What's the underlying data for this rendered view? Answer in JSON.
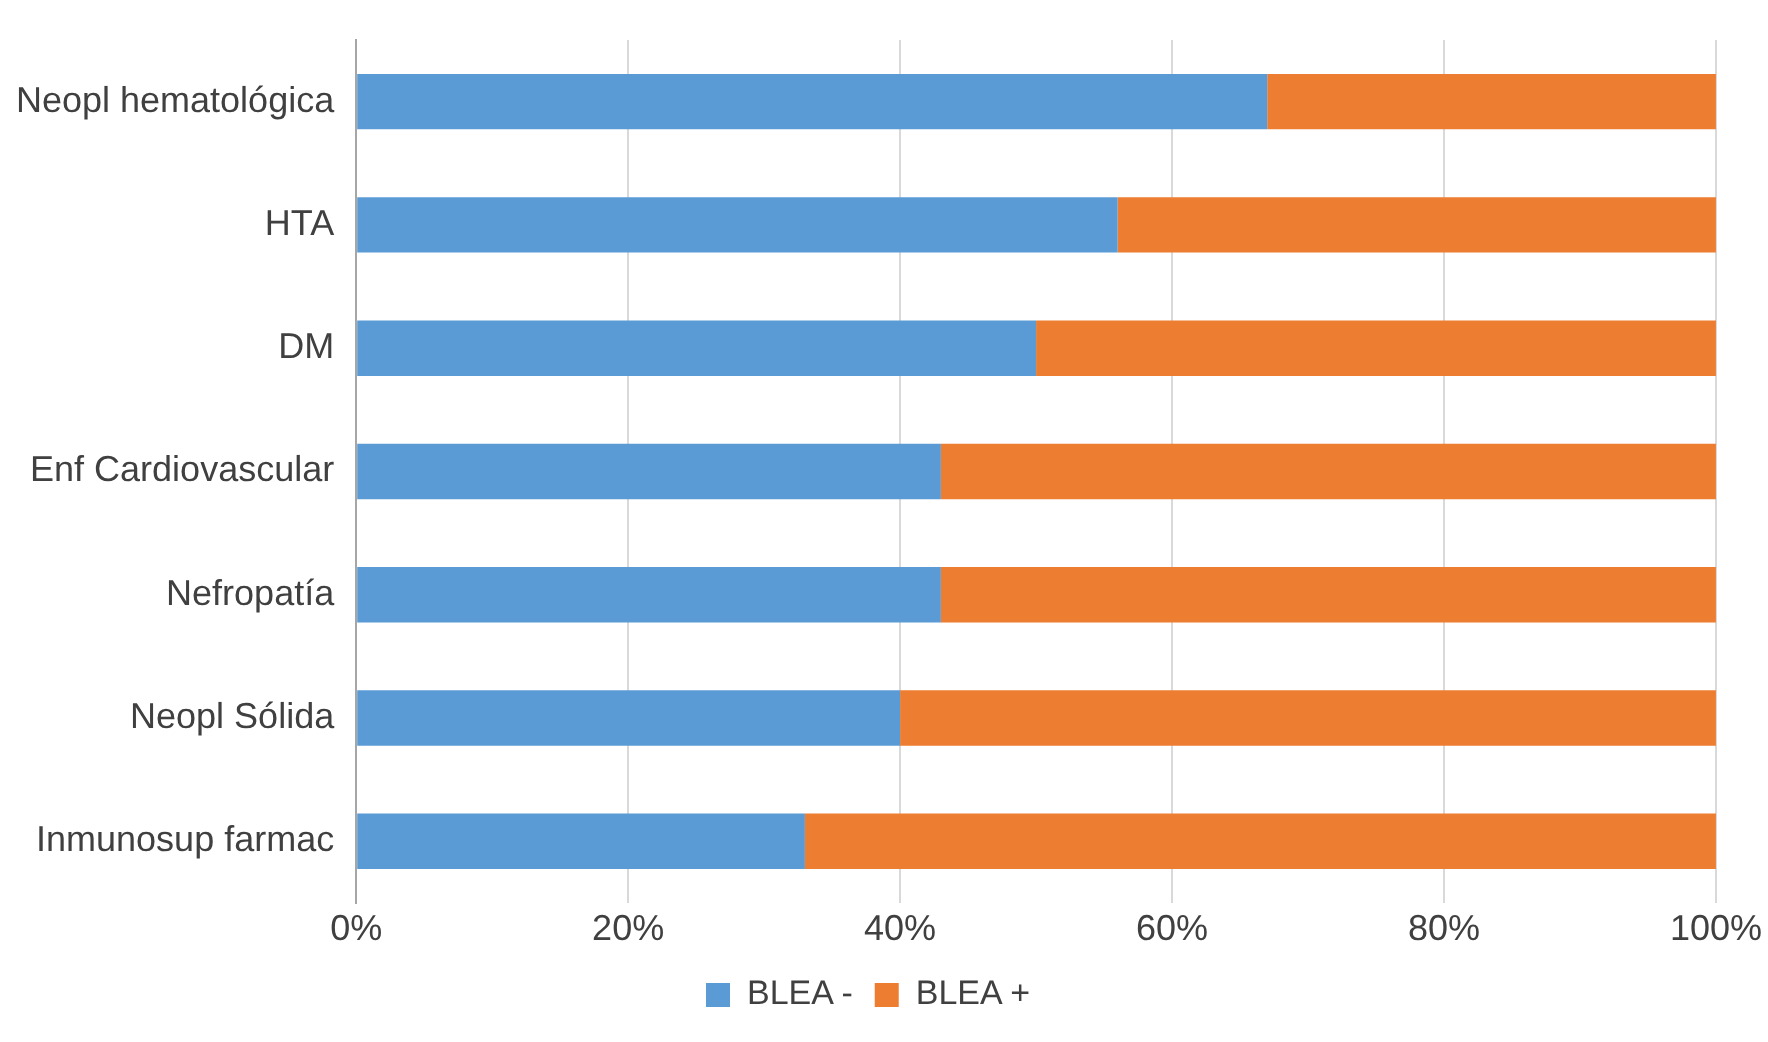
{
  "chart_data": {
    "type": "bar",
    "orientation": "horizontal",
    "stacked": true,
    "categories": [
      "Neopl hematológica",
      "HTA",
      "DM",
      "Enf Cardiovascular",
      "Nefropatía",
      "Neopl Sólida",
      "Inmunosup farmac"
    ],
    "series": [
      {
        "name": "BLEA -",
        "color": "#5b9bd5",
        "values": [
          67,
          56,
          50,
          43,
          43,
          40,
          33
        ]
      },
      {
        "name": "BLEA +",
        "color": "#ed7d31",
        "values": [
          33,
          44,
          50,
          57,
          57,
          60,
          67
        ]
      }
    ],
    "xlim": [
      0,
      100
    ],
    "xticks": [
      {
        "value": 0,
        "label": "0%"
      },
      {
        "value": 20,
        "label": "20%"
      },
      {
        "value": 40,
        "label": "40%"
      },
      {
        "value": 60,
        "label": "60%"
      },
      {
        "value": 80,
        "label": "80%"
      },
      {
        "value": 100,
        "label": "100%"
      }
    ],
    "grid": "x",
    "legend": "bottom"
  }
}
